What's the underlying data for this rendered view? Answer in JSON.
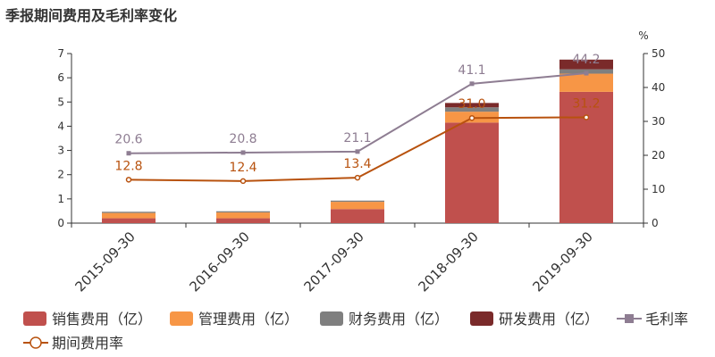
{
  "title": "季报期间费用及毛利率变化",
  "right_axis_unit": "%",
  "colors": {
    "sales": "#c0504d",
    "mgmt": "#f79646",
    "fin": "#7f7f7f",
    "rd": "#7a2a2a",
    "gross": "#8e7d92",
    "period": "#b8520e"
  },
  "chart_data": {
    "type": "bar",
    "categories": [
      "2015-09-30",
      "2016-09-30",
      "2017-09-30",
      "2018-09-30",
      "2019-09-30"
    ],
    "left_axis": {
      "ylim": [
        0,
        7
      ],
      "ticks": [
        0,
        1,
        2,
        3,
        4,
        5,
        6,
        7
      ]
    },
    "right_axis": {
      "ylim": [
        0,
        50
      ],
      "ticks": [
        0,
        10,
        20,
        30,
        40,
        50
      ],
      "unit": "%"
    },
    "stacked_series": [
      {
        "name": "销售费用（亿）",
        "key": "sales",
        "values": [
          0.2,
          0.2,
          0.58,
          4.15,
          5.42
        ]
      },
      {
        "name": "管理费用（亿）",
        "key": "mgmt",
        "values": [
          0.22,
          0.24,
          0.3,
          0.45,
          0.75
        ]
      },
      {
        "name": "财务费用（亿）",
        "key": "fin",
        "values": [
          0.05,
          0.05,
          0.05,
          0.18,
          0.18
        ]
      },
      {
        "name": "研发费用（亿）",
        "key": "rd",
        "values": [
          0.0,
          0.0,
          0.0,
          0.18,
          0.4
        ]
      }
    ],
    "line_series": [
      {
        "name": "毛利率",
        "key": "gross",
        "values": [
          20.6,
          20.8,
          21.1,
          41.1,
          44.2
        ],
        "labels": [
          "20.6",
          "20.8",
          "21.1",
          "41.1",
          "44.2"
        ]
      },
      {
        "name": "期间费用率",
        "key": "period",
        "values": [
          12.8,
          12.4,
          13.4,
          31.0,
          31.2
        ],
        "labels": [
          "12.8",
          "12.4",
          "13.4",
          "31.0",
          "31.2"
        ]
      }
    ],
    "legend_position": "bottom"
  }
}
